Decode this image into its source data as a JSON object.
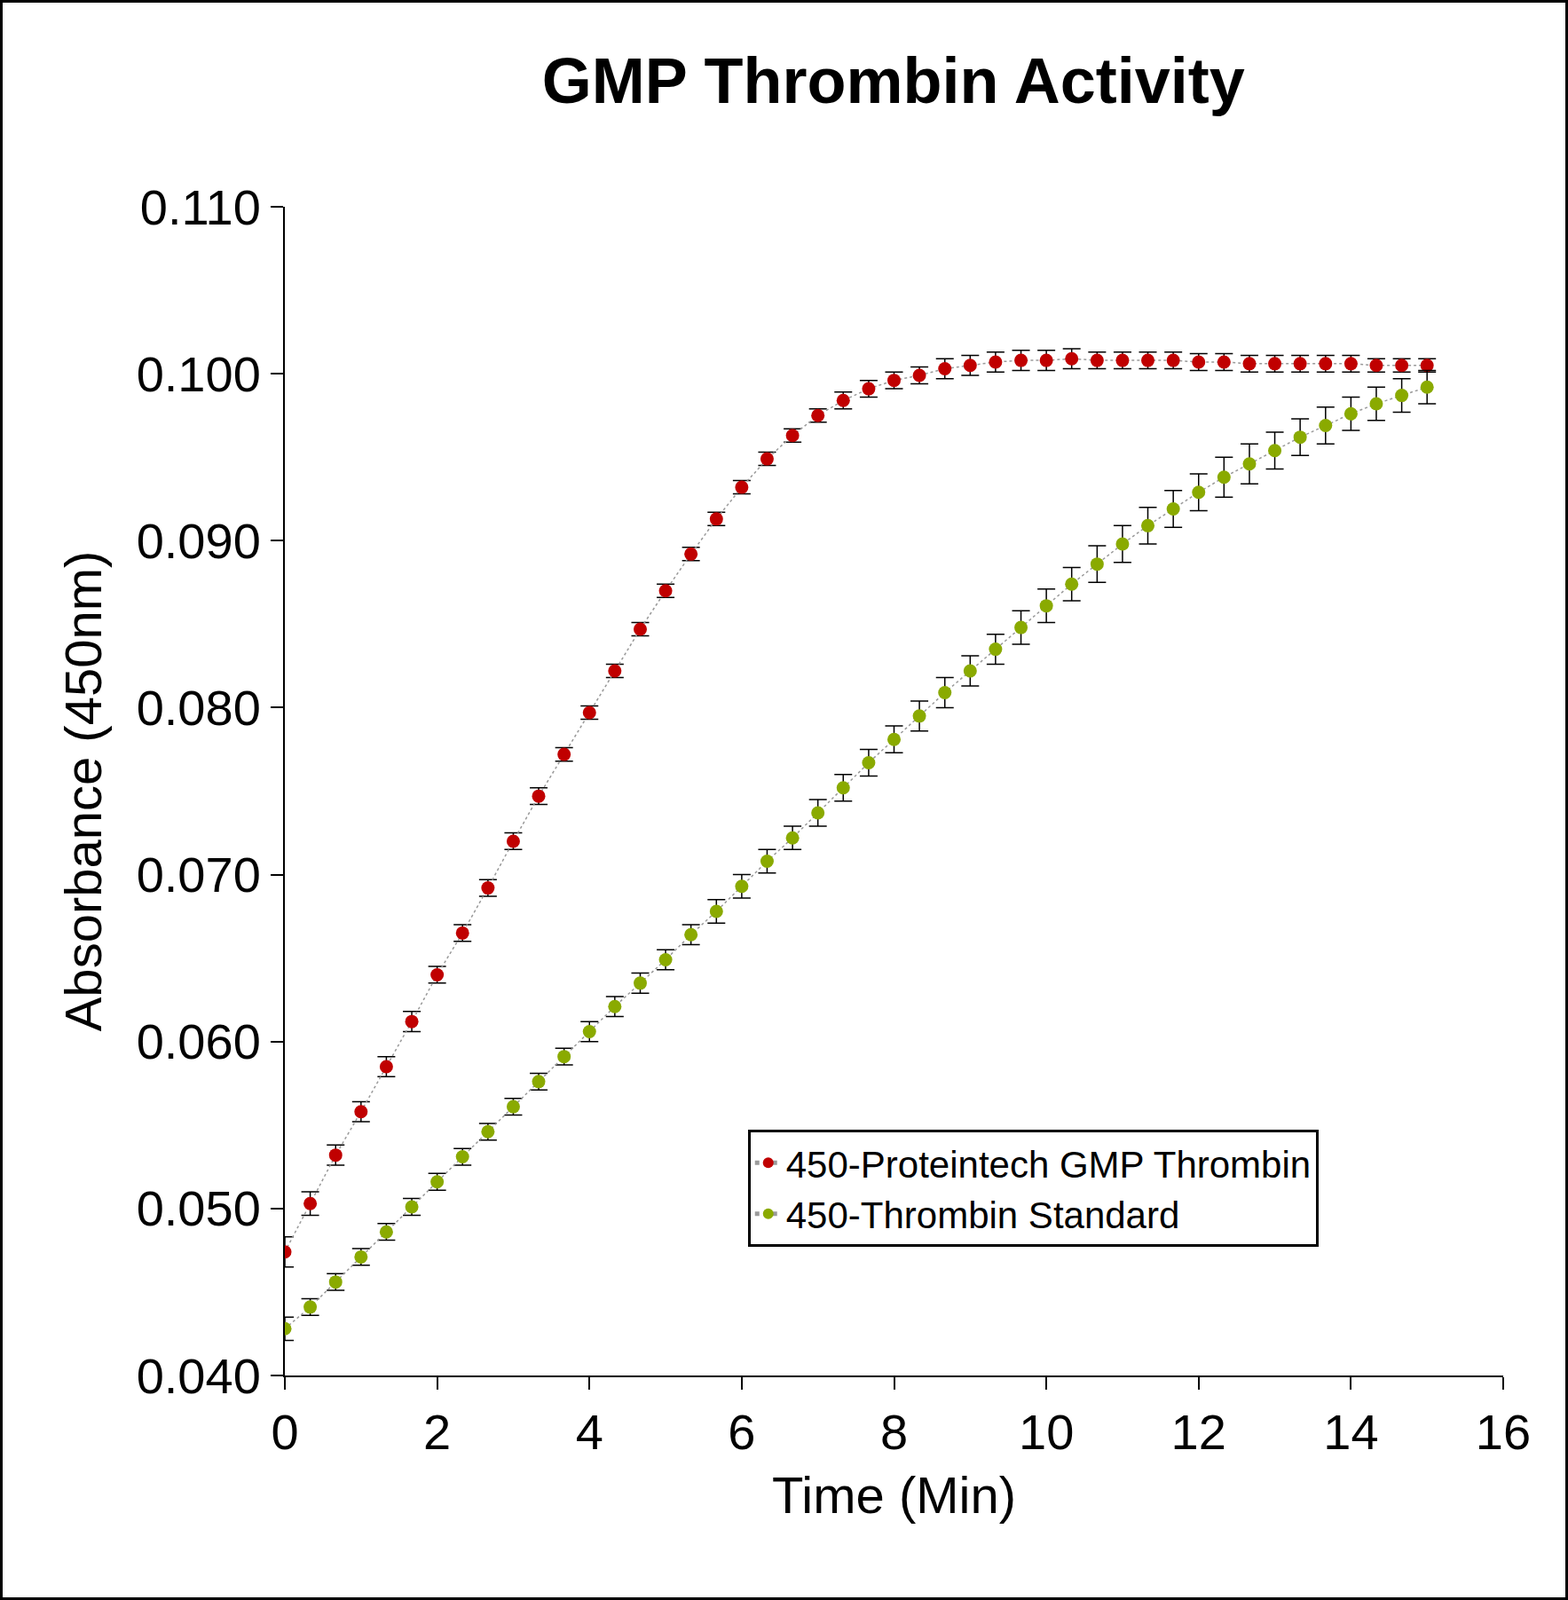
{
  "chart_data": {
    "type": "scatter",
    "title": "GMP Thrombin Activity",
    "x_label": "Time (Min)",
    "y_label": "Absorbance (450nm)",
    "marker": "circle",
    "line_style": "dotted",
    "grid": false,
    "legend": "lower right",
    "xlim": [
      0,
      16
    ],
    "xticks": [
      0,
      2,
      4,
      6,
      8,
      10,
      12,
      14,
      16
    ],
    "ylim": [
      0.04,
      0.11
    ],
    "yticks": [
      {
        "value": 0.04,
        "label": "0.040"
      },
      {
        "value": 0.05,
        "label": "0.050"
      },
      {
        "value": 0.06,
        "label": "0.060"
      },
      {
        "value": 0.07,
        "label": "0.070"
      },
      {
        "value": 0.08,
        "label": "0.080"
      },
      {
        "value": 0.09,
        "label": "0.090"
      },
      {
        "value": 0.1,
        "label": "0.100"
      },
      {
        "value": 0.11,
        "label": "0.110"
      }
    ],
    "x": [
      0,
      0.333,
      0.667,
      1,
      1.333,
      1.667,
      2,
      2.333,
      2.667,
      3,
      3.333,
      3.667,
      4,
      4.333,
      4.667,
      5,
      5.333,
      5.667,
      6,
      6.333,
      6.667,
      7,
      7.333,
      7.667,
      8,
      8.333,
      8.667,
      9,
      9.333,
      9.667,
      10,
      10.333,
      10.667,
      11,
      11.333,
      11.667,
      12,
      12.333,
      12.667,
      13,
      13.333,
      13.667,
      14,
      14.333,
      14.667,
      15
    ],
    "series": [
      {
        "name": "450-Proteintech GMP Thrombin",
        "color": "#c00000",
        "values": [
          0.0474,
          0.0503,
          0.0532,
          0.0558,
          0.0585,
          0.0612,
          0.064,
          0.0665,
          0.0692,
          0.072,
          0.0747,
          0.0772,
          0.0797,
          0.0822,
          0.0847,
          0.087,
          0.0892,
          0.0913,
          0.0932,
          0.0949,
          0.0963,
          0.0975,
          0.0984,
          0.0991,
          0.0996,
          0.0999,
          0.1003,
          0.1005,
          0.1007,
          0.1008,
          0.1008,
          0.1009,
          0.1008,
          0.1008,
          0.1008,
          0.1008,
          0.1007,
          0.1007,
          0.1006,
          0.1006,
          0.1006,
          0.1006,
          0.1006,
          0.1005,
          0.1005,
          0.1005
        ],
        "error": [
          0.0009,
          0.0007,
          0.0006,
          0.0006,
          0.0006,
          0.0006,
          0.0005,
          0.0005,
          0.0005,
          0.0005,
          0.0005,
          0.0004,
          0.0004,
          0.0004,
          0.0004,
          0.0004,
          0.0004,
          0.0004,
          0.0004,
          0.0004,
          0.0004,
          0.0004,
          0.0005,
          0.0005,
          0.0005,
          0.0005,
          0.0006,
          0.0006,
          0.0006,
          0.0006,
          0.0006,
          0.0006,
          0.0005,
          0.0005,
          0.0005,
          0.0005,
          0.0005,
          0.0005,
          0.0005,
          0.0005,
          0.0005,
          0.0005,
          0.0005,
          0.0004,
          0.0004,
          0.0004
        ]
      },
      {
        "name": "450-Thrombin Standard",
        "color": "#8aaa00",
        "values": [
          0.0428,
          0.0441,
          0.0456,
          0.0471,
          0.0486,
          0.0501,
          0.0516,
          0.0531,
          0.0546,
          0.0561,
          0.0576,
          0.0591,
          0.0606,
          0.0621,
          0.0635,
          0.0649,
          0.0664,
          0.0678,
          0.0693,
          0.0708,
          0.0722,
          0.0737,
          0.0752,
          0.0767,
          0.0781,
          0.0795,
          0.0809,
          0.0822,
          0.0835,
          0.0848,
          0.0861,
          0.0874,
          0.0886,
          0.0898,
          0.0909,
          0.0919,
          0.0929,
          0.0938,
          0.0946,
          0.0954,
          0.0962,
          0.0969,
          0.0976,
          0.0982,
          0.0987,
          0.0992
        ],
        "error": [
          0.0007,
          0.0005,
          0.0005,
          0.0005,
          0.0005,
          0.0005,
          0.0005,
          0.0005,
          0.0005,
          0.0005,
          0.0005,
          0.0005,
          0.0006,
          0.0006,
          0.0006,
          0.0006,
          0.0006,
          0.0007,
          0.0007,
          0.0007,
          0.0007,
          0.0008,
          0.0008,
          0.0008,
          0.0008,
          0.0009,
          0.0009,
          0.0009,
          0.0009,
          0.001,
          0.001,
          0.001,
          0.0011,
          0.0011,
          0.0011,
          0.0011,
          0.0011,
          0.0012,
          0.0012,
          0.0011,
          0.0011,
          0.0011,
          0.001,
          0.001,
          0.001,
          0.001
        ]
      }
    ]
  }
}
